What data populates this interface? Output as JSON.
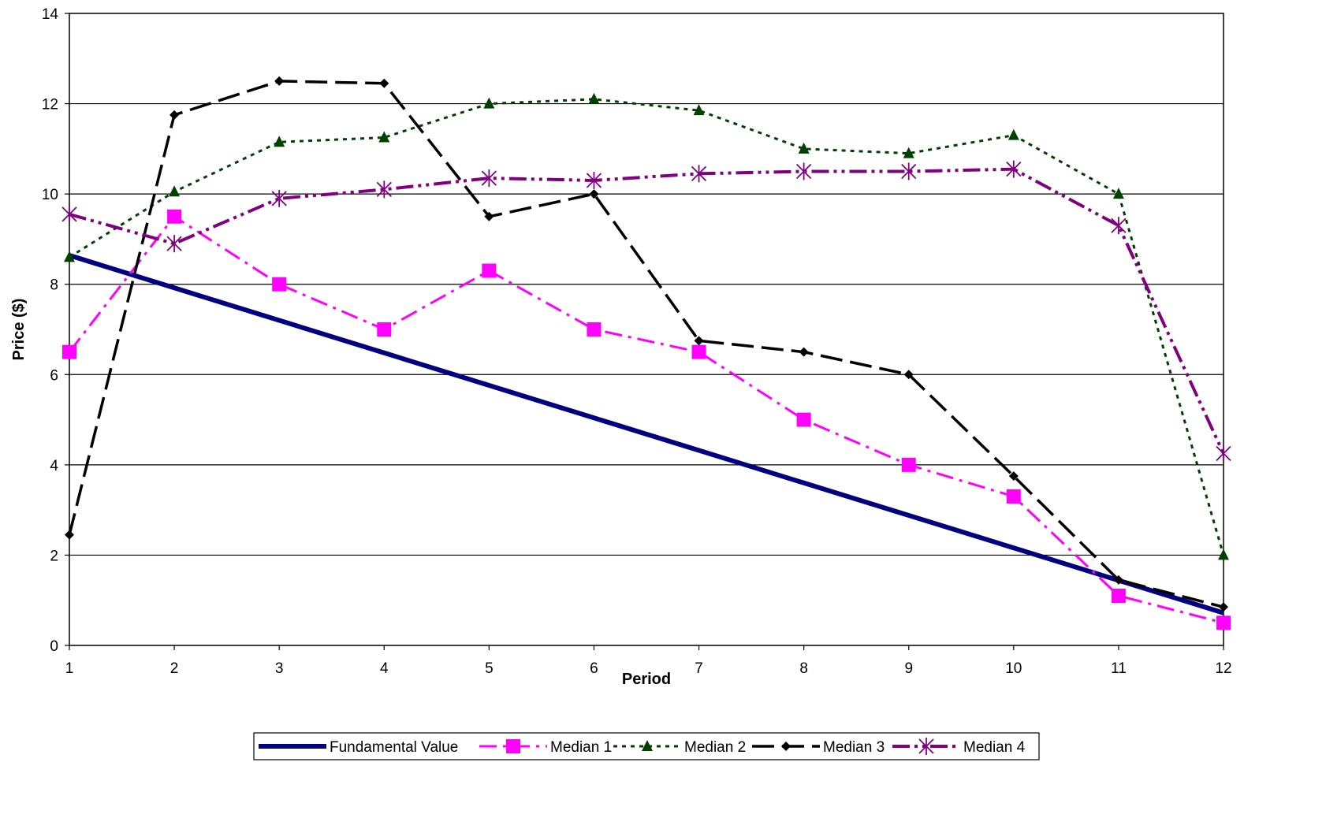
{
  "chart_data": {
    "type": "line",
    "title": "",
    "xlabel": "Period",
    "ylabel": "Price ($)",
    "x": [
      1,
      2,
      3,
      4,
      5,
      6,
      7,
      8,
      9,
      10,
      11,
      12
    ],
    "xlim": [
      1,
      12
    ],
    "ylim": [
      0,
      14
    ],
    "y_ticks": [
      0,
      2,
      4,
      6,
      8,
      10,
      12,
      14
    ],
    "grid": "horizontal",
    "legend_position": "bottom",
    "series": [
      {
        "name": "Fundamental Value",
        "color": "#000080",
        "style": "solid",
        "marker": "none",
        "values": [
          8.64,
          7.92,
          7.2,
          6.48,
          5.76,
          5.04,
          4.32,
          3.6,
          2.88,
          2.16,
          1.44,
          0.72
        ]
      },
      {
        "name": "Median 1",
        "color": "#FF00FF",
        "style": "dash-dot",
        "marker": "square",
        "values": [
          6.5,
          9.5,
          8.0,
          7.0,
          8.3,
          7.0,
          6.5,
          5.0,
          4.0,
          3.3,
          1.1,
          0.5
        ]
      },
      {
        "name": "Median 2",
        "color": "#004000",
        "style": "dotted",
        "marker": "triangle",
        "values": [
          8.6,
          10.05,
          11.15,
          11.25,
          12.0,
          12.1,
          11.85,
          11.0,
          10.9,
          11.3,
          10.0,
          2.0
        ]
      },
      {
        "name": "Median 3",
        "color": "#000000",
        "style": "long-dash",
        "marker": "diamond",
        "values": [
          2.45,
          11.75,
          12.5,
          12.45,
          9.5,
          10.0,
          6.75,
          6.5,
          6.0,
          3.75,
          1.45,
          0.85
        ]
      },
      {
        "name": "Median 4",
        "color": "#800080",
        "style": "dash-dot-dot",
        "marker": "asterisk",
        "values": [
          9.55,
          8.9,
          9.9,
          10.1,
          10.35,
          10.3,
          10.45,
          10.5,
          10.5,
          10.55,
          9.3,
          4.25
        ]
      }
    ]
  }
}
